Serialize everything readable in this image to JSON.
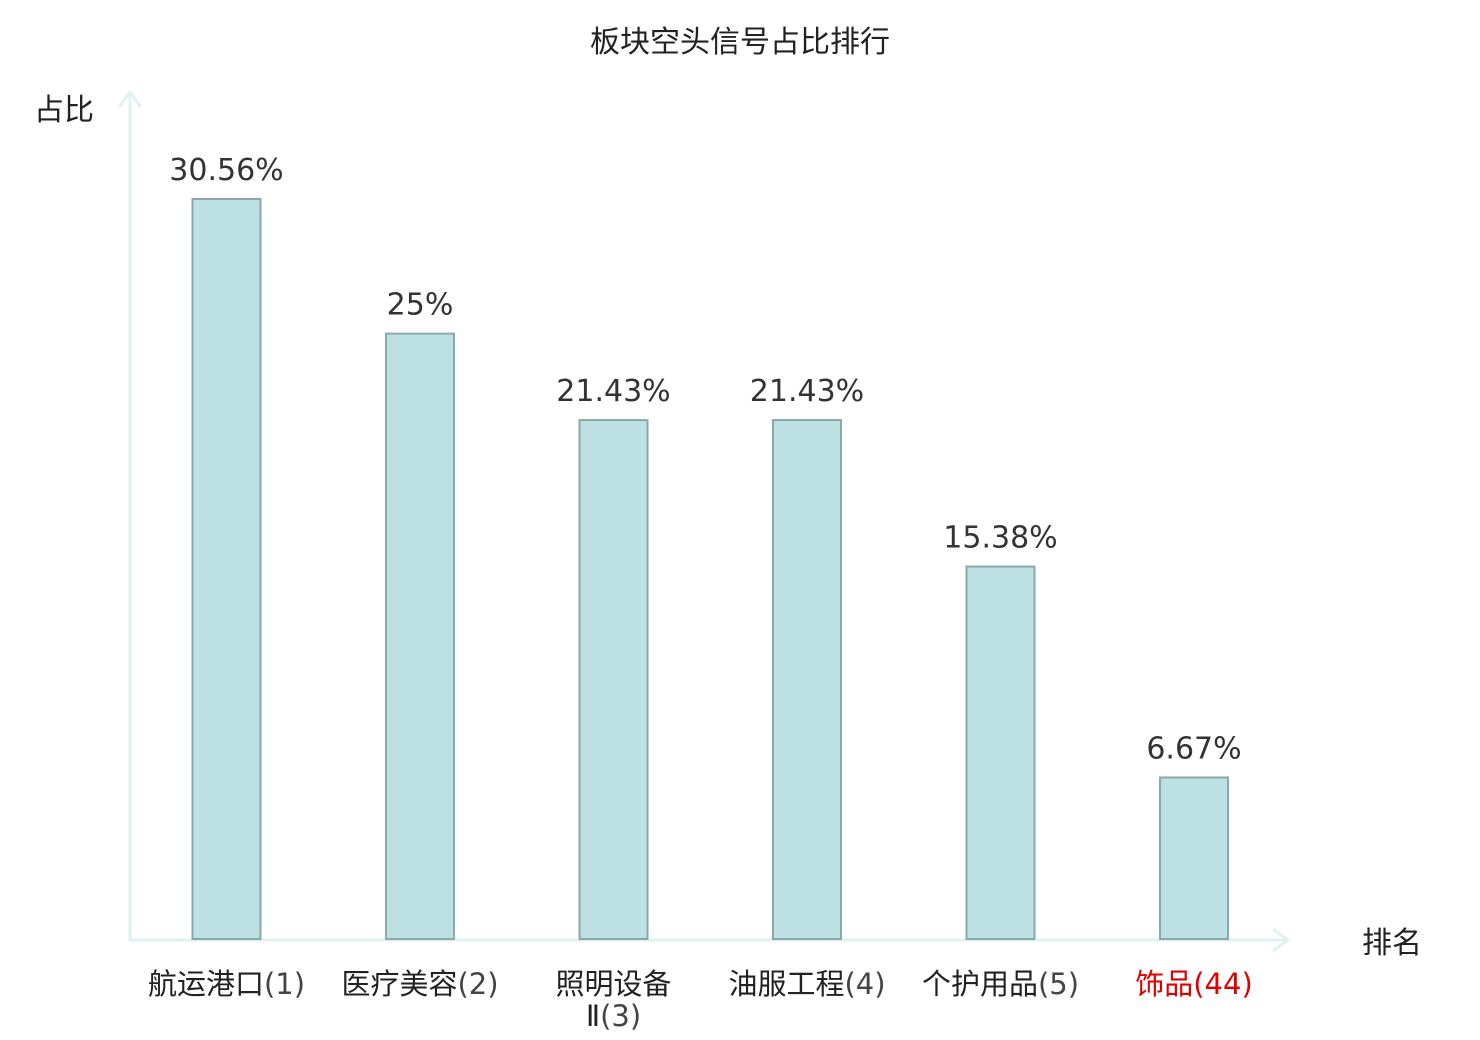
{
  "chart_data": {
    "type": "bar",
    "title": "板块空头信号占比排行",
    "ylabel": "占比",
    "xlabel": "排名",
    "categories": [
      {
        "name": "航运港口",
        "rank": "(1)"
      },
      {
        "name": "医疗美容",
        "rank": "(2)"
      },
      {
        "name": "照明设备",
        "name_line2": "Ⅱ",
        "rank": "(3)"
      },
      {
        "name": "油服工程",
        "rank": "(4)"
      },
      {
        "name": "个护用品",
        "rank": "(5)"
      },
      {
        "name": "饰品",
        "rank": "(44)",
        "highlight": true
      }
    ],
    "values": [
      30.56,
      25,
      21.43,
      21.43,
      15.38,
      6.67
    ],
    "value_labels": [
      "30.56%",
      "25%",
      "21.43%",
      "21.43%",
      "15.38%",
      "6.67%"
    ],
    "ylim": [
      0,
      30.56
    ],
    "grid": false,
    "legend": "none",
    "colors": {
      "bar_fill": "#bde0e3",
      "bar_stroke": "#8aa8ab",
      "axis": "#e0f2f0",
      "highlight": "#e00000",
      "text": "#222222"
    }
  }
}
